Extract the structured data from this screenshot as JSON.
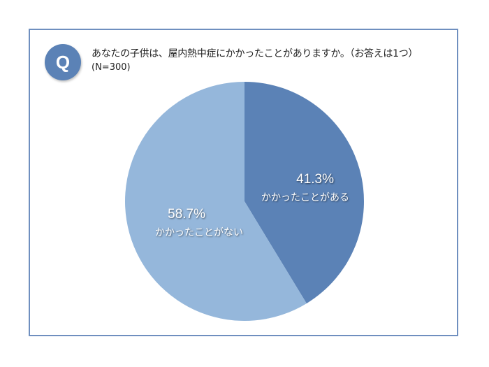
{
  "header": {
    "badge": "Q",
    "question": "あなたの子供は、屋内熱中症にかかったことがありますか。（お答えは1つ）",
    "sample": "(N=300)"
  },
  "colors": {
    "frame": "#6f8fbf",
    "badge": "#5b82b6",
    "slice_yes": "#5b82b6",
    "slice_no": "#95b7db"
  },
  "labels": {
    "yes": {
      "pct": "41.3%",
      "name": "かかったことがある"
    },
    "no": {
      "pct": "58.7%",
      "name": "かかったことがない"
    }
  },
  "chart_data": {
    "type": "pie",
    "title": "あなたの子供は、屋内熱中症にかかったことがありますか。（お答えは1つ）",
    "subtitle": "(N=300)",
    "categories": [
      "かかったことがある",
      "かかったことがない"
    ],
    "values": [
      41.3,
      58.7
    ],
    "unit": "%",
    "colors": [
      "#5b82b6",
      "#95b7db"
    ],
    "start_angle": "12 o'clock, clockwise",
    "legend": "none (data labels inside slices)"
  }
}
